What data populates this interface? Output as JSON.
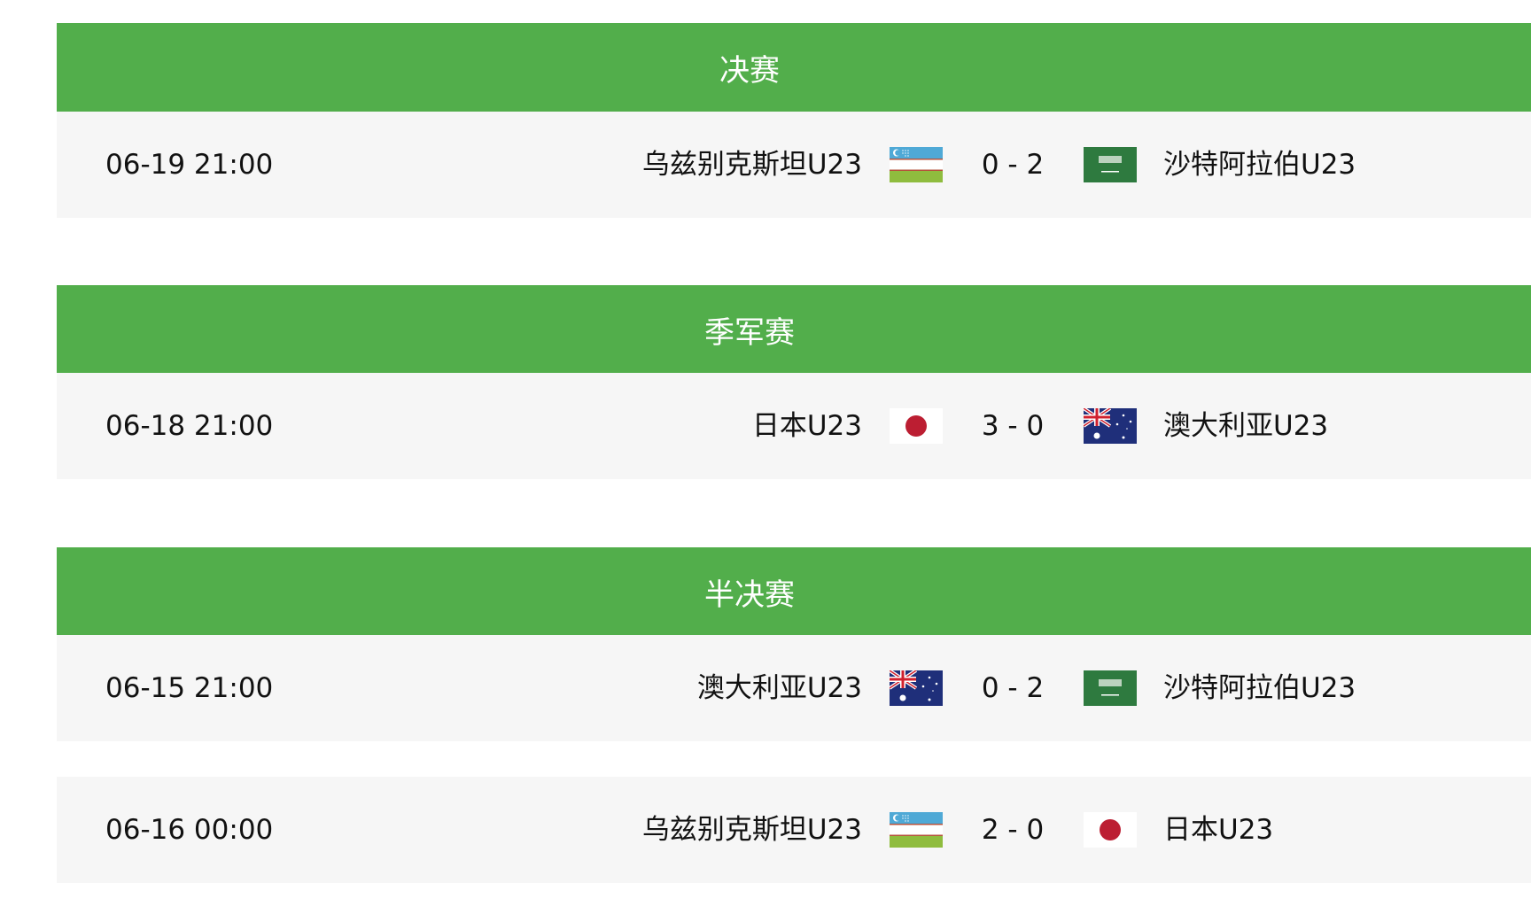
{
  "colors": {
    "header": "#52ae4b",
    "row": "#f6f6f6"
  },
  "sections": [
    {
      "title": "决赛",
      "matches": [
        {
          "time": "06-19 21:00",
          "home": "乌兹别克斯坦U23",
          "home_flag": "uzbekistan-flag",
          "score": "0 - 2",
          "away": "沙特阿拉伯U23",
          "away_flag": "saudi-arabia-flag"
        }
      ]
    },
    {
      "title": "季军赛",
      "matches": [
        {
          "time": "06-18 21:00",
          "home": "日本U23",
          "home_flag": "japan-flag",
          "score": "3 - 0",
          "away": "澳大利亚U23",
          "away_flag": "australia-flag"
        }
      ]
    },
    {
      "title": "半决赛",
      "matches": [
        {
          "time": "06-15 21:00",
          "home": "澳大利亚U23",
          "home_flag": "australia-flag",
          "score": "0 - 2",
          "away": "沙特阿拉伯U23",
          "away_flag": "saudi-arabia-flag"
        },
        {
          "time": "06-16 00:00",
          "home": "乌兹别克斯坦U23",
          "home_flag": "uzbekistan-flag",
          "score": "2 - 0",
          "away": "日本U23",
          "away_flag": "japan-flag"
        }
      ]
    }
  ]
}
